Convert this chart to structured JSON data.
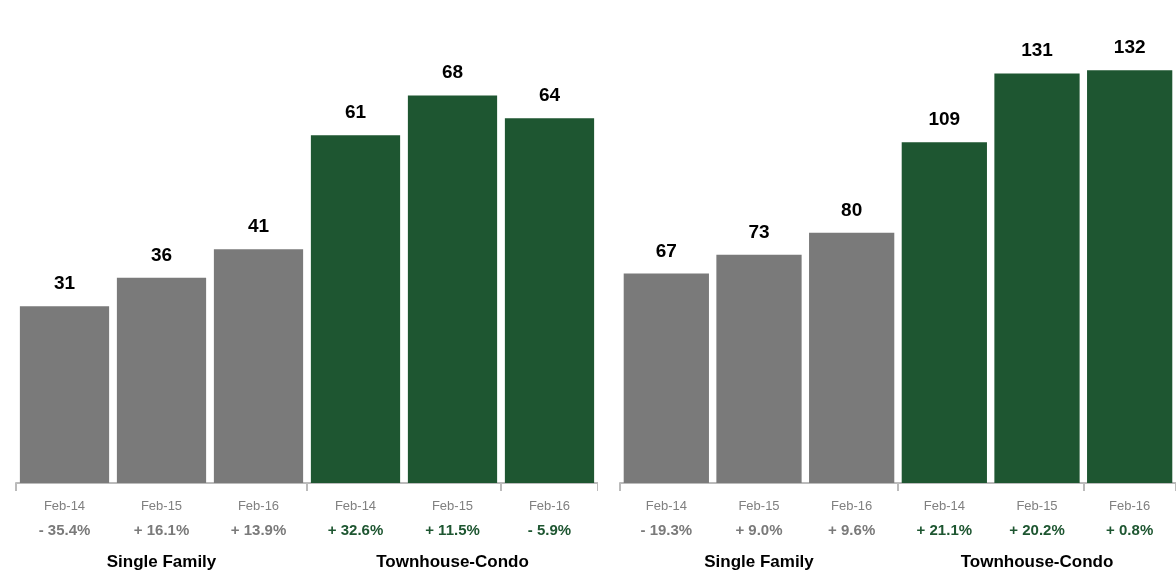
{
  "chart_data": [
    {
      "type": "bar",
      "categories": [
        "Feb-14",
        "Feb-15",
        "Feb-16",
        "Feb-14",
        "Feb-15",
        "Feb-16"
      ],
      "values": [
        31,
        36,
        41,
        61,
        68,
        64
      ],
      "colors": [
        "#7a7a7a",
        "#7a7a7a",
        "#7a7a7a",
        "#1e5631",
        "#1e5631",
        "#1e5631"
      ],
      "data_labels": true,
      "annotations": [
        "- 35.4%",
        "+ 16.1%",
        "+ 13.9%",
        "+ 32.6%",
        "+ 11.5%",
        "- 5.9%",
        "Single Family",
        "Townhouse-Condo"
      ]
    },
    {
      "type": "bar",
      "categories": [
        "Feb-14",
        "Feb-15",
        "Feb-16",
        "Feb-14",
        "Feb-15",
        "Feb-16"
      ],
      "values": [
        67,
        73,
        80,
        109,
        131,
        132
      ],
      "colors": [
        "#7a7a7a",
        "#7a7a7a",
        "#7a7a7a",
        "#1e5631",
        "#1e5631",
        "#1e5631"
      ],
      "data_labels": true,
      "annotations": [
        "- 19.3%",
        "+ 9.0%",
        "+ 9.6%",
        "+ 21.1%",
        "+ 20.2%",
        "+ 0.8%",
        "Single Family",
        "Townhouse-Condo"
      ]
    }
  ]
}
